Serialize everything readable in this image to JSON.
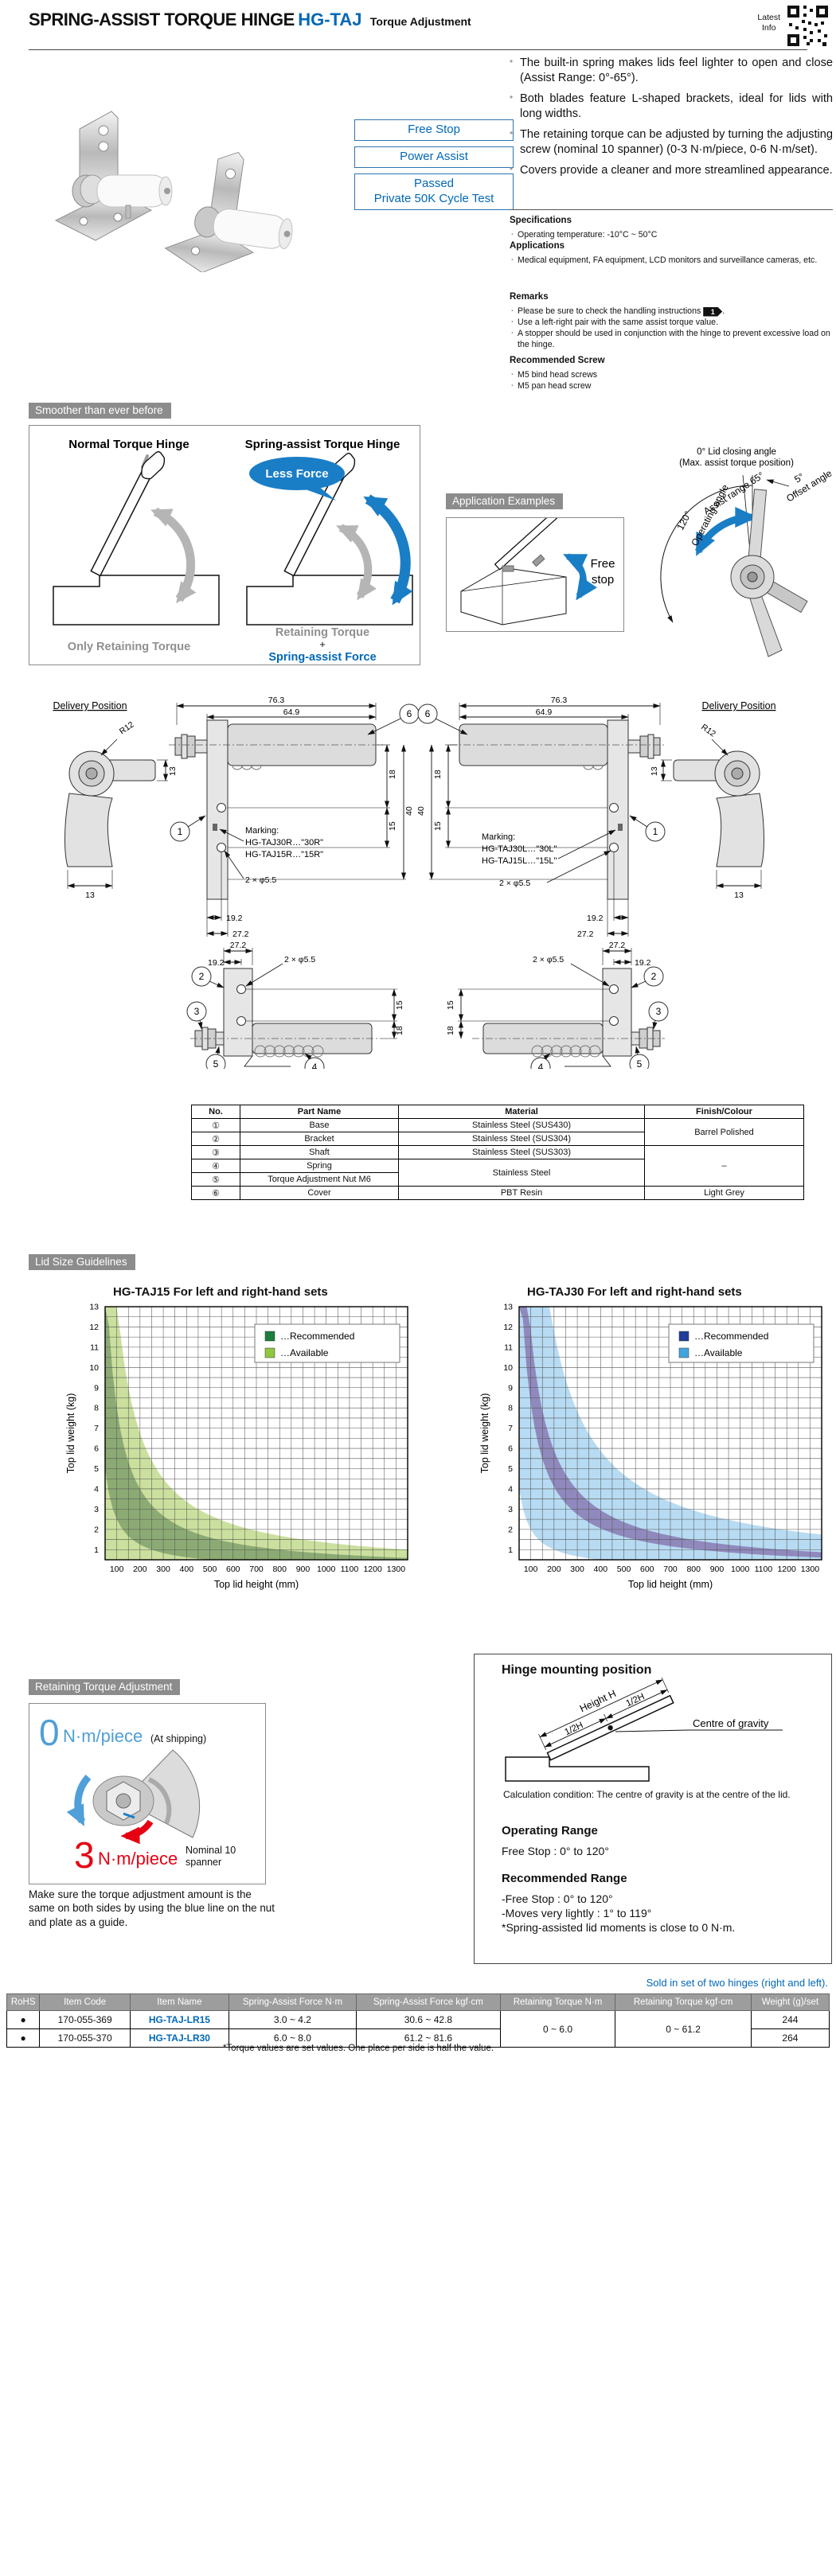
{
  "colors": {
    "accent": "#0068b7",
    "red": "#e60012",
    "light_blue": "#4f9fd8",
    "chip_bg": "#8c8c8c",
    "table_header_bg": "#9d9d9d"
  },
  "header": {
    "title_main": "SPRING-ASSIST TORQUE HINGE",
    "title_model": "HG-TAJ",
    "title_sub": "Torque Adjustment",
    "latest_info": "Latest\nInfo"
  },
  "intro": {
    "badges": [
      "Free Stop",
      "Power Assist",
      "Passed\nPrivate 50K Cycle Test"
    ],
    "features": [
      "The built-in spring makes lids feel lighter to open and close (Assist Range: 0°-65°).",
      "Both blades feature L-shaped brackets, ideal for lids with long widths.",
      "The retaining torque can be adjusted by turning the adjusting screw (nominal 10 spanner) (0-3 N·m/piece, 0-6 N·m/set).",
      "Covers provide a cleaner and more streamlined appearance."
    ],
    "specs_heading": "Specifications",
    "specs_item": "Operating temperature: -10°C ~ 50°C",
    "apps_heading": "Applications",
    "apps_item": "Medical equipment, FA equipment, LCD monitors and surveillance cameras, etc.",
    "remarks_heading": "Remarks",
    "remark1": "Please be sure to check the handling instructions",
    "remark1_badge": "1",
    "remark1_suffix": ".",
    "remark2": "Use a left-right pair with the same assist torque value.",
    "remark3": "A stopper should be used in conjunction with the hinge to prevent excessive load on the hinge.",
    "screw_heading": "Recommended Screw",
    "screw1": "M5 bind head screws",
    "screw2": "M5 pan head screw"
  },
  "smoother": {
    "label": "Smoother than ever before",
    "left_title": "Normal Torque Hinge",
    "right_title": "Spring-assist Torque Hinge",
    "bubble": "Less Force",
    "left_caption": "Only Retaining Torque",
    "right_caption_1": "Retaining Torque",
    "right_caption_plus": "+",
    "right_caption_2": "Spring-assist Force"
  },
  "app_examples": {
    "label": "Application Examples",
    "free_line1": "Free",
    "free_line2": "stop",
    "angle_title_1": "0° Lid closing angle",
    "angle_title_2": "(Max. assist torque position)",
    "operating_value": "120°",
    "operating_label": "Operating angle",
    "assist_label": "Assist range 65°",
    "offset_value": "5°",
    "offset_label": "Offset angle"
  },
  "drawings": {
    "delivery_position": "Delivery Position",
    "r12": "R12",
    "dim13": "13",
    "dim763": "76.3",
    "dim649": "64.9",
    "dim18": "18",
    "dim15": "15",
    "dim40": "40",
    "dim192": "19.2",
    "dim272": "27.2",
    "holes": "2 × φ5.5",
    "marking_heading": "Marking:",
    "marking_r1": "HG-TAJ30R…\"30R\"",
    "marking_r2": "HG-TAJ15R…\"15R\"",
    "marking_l1": "HG-TAJ30L…\"30L\"",
    "marking_l2": "HG-TAJ15L…\"15L\"",
    "callouts": [
      "1",
      "2",
      "3",
      "4",
      "5",
      "6"
    ]
  },
  "parts": {
    "headers": [
      "No.",
      "Part Name",
      "Material",
      "Finish/Colour"
    ],
    "rows": [
      {
        "no": "①",
        "name": "Base",
        "material": "Stainless Steel (SUS430)",
        "finish": "Barrel Polished"
      },
      {
        "no": "②",
        "name": "Bracket",
        "material": "Stainless Steel (SUS304)"
      },
      {
        "no": "③",
        "name": "Shaft",
        "material": "Stainless Steel (SUS303)",
        "finish": "–"
      },
      {
        "no": "④",
        "name": "Spring",
        "material": "Stainless Steel"
      },
      {
        "no": "⑤",
        "name": "Torque Adjustment Nut M6"
      },
      {
        "no": "⑥",
        "name": "Cover",
        "material": "PBT Resin",
        "finish": "Light Grey"
      }
    ]
  },
  "lid_size_label": "Lid Size Guidelines",
  "chart_data": [
    {
      "type": "area",
      "title": "HG-TAJ15 For left and right-hand sets",
      "xlabel": "Top lid height (mm)",
      "ylabel": "Top lid weight (kg)",
      "xlim": [
        50,
        1350
      ],
      "ylim": [
        0.5,
        13
      ],
      "x_ticks": [
        100,
        200,
        300,
        400,
        500,
        600,
        700,
        800,
        900,
        1000,
        1100,
        1200,
        1300
      ],
      "y_ticks": [
        1,
        2,
        3,
        4,
        5,
        6,
        7,
        8,
        9,
        10,
        11,
        12,
        13
      ],
      "minor_x": 50,
      "minor_y": 0.5,
      "grid": true,
      "legend_pos": "top-right",
      "legend": [
        {
          "label": "…Recommended",
          "color": "#1b7e3c"
        },
        {
          "label": "…Available",
          "color": "#8fc73e"
        }
      ],
      "bands": [
        {
          "name": "Available",
          "k_min": 0,
          "k_max": 1350,
          "fill": "#cbe09e"
        },
        {
          "name": "Recommended",
          "k_min": 250,
          "k_max": 800,
          "fill": "#8cab74"
        }
      ],
      "curve_samples": {
        "x": [
          100,
          200,
          300,
          400,
          500,
          600,
          700,
          800,
          900,
          1000,
          1100,
          1200,
          1300
        ],
        "available_max_kg": [
          13,
          6.8,
          4.5,
          3.4,
          2.7,
          2.3,
          1.9,
          1.7,
          1.5,
          1.4,
          1.2,
          1.1,
          1.0
        ],
        "recommended_max_kg": [
          8.0,
          4.0,
          2.7,
          2.0,
          1.6,
          1.3,
          1.1,
          1.0,
          0.9,
          0.8,
          0.7,
          0.7,
          0.6
        ],
        "recommended_min_kg": [
          2.5,
          1.3,
          0.8,
          0.6,
          0.5,
          0.4,
          0.4,
          0.3,
          0.3,
          0.3,
          0.2,
          0.2,
          0.2
        ]
      }
    },
    {
      "type": "area",
      "title": "HG-TAJ30 For left and right-hand sets",
      "xlabel": "Top lid height (mm)",
      "ylabel": "Top lid weight (kg)",
      "xlim": [
        50,
        1350
      ],
      "ylim": [
        0.5,
        13
      ],
      "x_ticks": [
        100,
        200,
        300,
        400,
        500,
        600,
        700,
        800,
        900,
        1000,
        1100,
        1200,
        1300
      ],
      "y_ticks": [
        1,
        2,
        3,
        4,
        5,
        6,
        7,
        8,
        9,
        10,
        11,
        12,
        13
      ],
      "minor_x": 50,
      "minor_y": 0.5,
      "grid": true,
      "legend_pos": "top-right",
      "legend": [
        {
          "label": "…Recommended",
          "color": "#1f3d99"
        },
        {
          "label": "…Available",
          "color": "#42a4dc"
        }
      ],
      "bands": [
        {
          "name": "Available",
          "k_min": 200,
          "k_max": 2350,
          "fill": "#b7dbf2"
        },
        {
          "name": "Recommended",
          "k_min": 820,
          "k_max": 1180,
          "fill": "#9089bd"
        }
      ],
      "curve_samples": {
        "x": [
          100,
          200,
          300,
          400,
          500,
          600,
          700,
          800,
          900,
          1000,
          1100,
          1200,
          1300
        ],
        "available_max_kg": [
          13,
          11.8,
          7.8,
          5.9,
          4.7,
          3.9,
          3.4,
          2.9,
          2.6,
          2.4,
          2.1,
          2.0,
          1.8
        ],
        "available_min_kg": [
          2.0,
          1.0,
          0.7,
          0.5,
          0.4,
          0.3,
          0.3,
          0.3,
          0.2,
          0.2,
          0.2,
          0.2,
          0.2
        ],
        "recommended_max_kg": [
          11.8,
          5.9,
          3.9,
          3.0,
          2.4,
          2.0,
          1.7,
          1.5,
          1.3,
          1.2,
          1.1,
          1.0,
          0.9
        ],
        "recommended_min_kg": [
          8.2,
          4.1,
          2.7,
          2.1,
          1.6,
          1.4,
          1.2,
          1.0,
          0.9,
          0.8,
          0.7,
          0.7,
          0.6
        ]
      }
    }
  ],
  "torque_adjust": {
    "label": "Retaining Torque Adjustment",
    "zero_value": "0",
    "zero_unit": "N·m/piece",
    "zero_note": "(At shipping)",
    "three_value": "3",
    "three_unit": "N·m/piece",
    "three_note_1": "Nominal 10",
    "three_note_2": "spanner",
    "note": "Make sure the torque adjustment amount is the same on both sides by using the blue line on the nut and plate as a guide."
  },
  "mounting": {
    "title": "Hinge mounting position",
    "height_h": "Height H",
    "half_h": "1/2H",
    "cog": "Centre of gravity",
    "calc": "Calculation condition: The centre of gravity is at the centre of the lid.",
    "op_heading": "Operating Range",
    "op_text": "Free Stop : 0° to 120°",
    "rec_heading": "Recommended Range",
    "rec_line1": "-Free Stop : 0° to 120°",
    "rec_line2": "-Moves very lightly : 1° to 119°",
    "rec_line3": "*Spring-assisted lid moments is close to 0 N·m."
  },
  "order": {
    "sold_note": "Sold in set of two hinges (right and left).",
    "headers": [
      "RoHS",
      "Item Code",
      "Item Name",
      "Spring-Assist Force N·m",
      "Spring-Assist Force kgf·cm",
      "Retaining Torque N·m",
      "Retaining Torque kgf·cm",
      "Weight (g)/set"
    ],
    "rows": [
      {
        "rohs": "●",
        "code": "170-055-369",
        "name": "HG-TAJ-LR15",
        "saf_nm": "3.0 ~ 4.2",
        "saf_kgf": "30.6 ~ 42.8",
        "rt_nm": "0 ~ 6.0",
        "rt_kgf": "0 ~ 61.2",
        "weight": "244"
      },
      {
        "rohs": "●",
        "code": "170-055-370",
        "name": "HG-TAJ-LR30",
        "saf_nm": "6.0 ~ 8.0",
        "saf_kgf": "61.2 ~ 81.6",
        "weight": "264"
      }
    ],
    "footnote": "*Torque values are set values. One place per side is half the value."
  }
}
